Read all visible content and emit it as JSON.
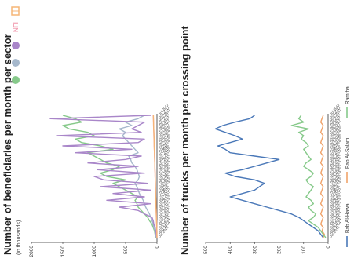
{
  "chart_data": [
    {
      "type": "line",
      "title": "Number of beneficiaries per month per sector",
      "subtitle": "(in thousands)",
      "ylim": [
        0,
        2000
      ],
      "yticks": [
        0,
        500,
        1000,
        1500,
        2000
      ],
      "grid": false,
      "legend_position": "top",
      "x": [
        "Jul 2014",
        "Aug 2014",
        "Sep 2014",
        "Oct 2014",
        "Nov 2014",
        "Dec 2014",
        "Jan 2015",
        "Feb 2015",
        "Mar 2015",
        "Apr 2015",
        "May 2015",
        "Jun 2015",
        "Jul 2015",
        "Aug 2015",
        "Sep 2015",
        "Oct 2015",
        "Nov 2015",
        "Dec 2015",
        "Jan 2016",
        "Feb 2016",
        "Mar 2016",
        "Apr 2016",
        "May 2016",
        "Jun 2016",
        "Jul 2016",
        "Aug 2016",
        "Sep 2016",
        "Oct 2016",
        "Nov 2016",
        "Dec 2016",
        "Jan 2017",
        "Feb 2017",
        "Mar 2017",
        "Apr 2017",
        "May 2017",
        "Jun 2017",
        "Jul 2017"
      ],
      "series": [
        {
          "icon": "food-sector-icon",
          "color": "#86c98a",
          "values": [
            20,
            30,
            40,
            60,
            80,
            120,
            150,
            200,
            250,
            300,
            320,
            350,
            300,
            400,
            500,
            600,
            700,
            500,
            800,
            900,
            700,
            600,
            800,
            900,
            1000,
            1100,
            700,
            900,
            1200,
            1300,
            1000,
            1100,
            1400,
            1500,
            1200,
            1300,
            1500
          ]
        },
        {
          "icon": "health-sector-icon",
          "color": "#a6b8cc",
          "values": [
            10,
            20,
            30,
            50,
            60,
            80,
            100,
            120,
            150,
            180,
            200,
            220,
            250,
            280,
            300,
            320,
            350,
            300,
            280,
            300,
            320,
            350,
            400,
            420,
            450,
            300,
            350,
            400,
            450,
            500,
            550,
            500,
            600,
            400,
            500,
            300,
            200
          ]
        },
        {
          "icon": "wash-sector-icon",
          "color": "#a986c9",
          "values": [
            5,
            10,
            20,
            30,
            50,
            60,
            80,
            200,
            300,
            600,
            100,
            800,
            200,
            700,
            100,
            900,
            150,
            850,
            1000,
            200,
            950,
            300,
            1100,
            500,
            250,
            1300,
            400,
            1500,
            300,
            200,
            1600,
            250,
            400,
            300,
            200,
            1700,
            100
          ]
        },
        {
          "icon": "nfi-sector-icon",
          "color": "#f2a0b3",
          "values": [
            0,
            0,
            0,
            5,
            5,
            8,
            10,
            10,
            12,
            15,
            15,
            18,
            20,
            20,
            22,
            25,
            25,
            28,
            30,
            30,
            32,
            35,
            35,
            38,
            40,
            40,
            42,
            45,
            45,
            48,
            50,
            50,
            52,
            55,
            55,
            58,
            60
          ]
        },
        {
          "icon": "shelter-sector-icon",
          "color": "#f5b577",
          "values": [
            0,
            2,
            3,
            5,
            6,
            8,
            10,
            12,
            14,
            15,
            16,
            18,
            20,
            22,
            24,
            25,
            26,
            28,
            30,
            30,
            32,
            34,
            35,
            36,
            38,
            40,
            42,
            44,
            45,
            46,
            48,
            50,
            52,
            54,
            55,
            56,
            58
          ]
        }
      ]
    },
    {
      "type": "line",
      "title": "Number of trucks per month per crossing point",
      "ylim": [
        0,
        500
      ],
      "yticks": [
        0,
        100,
        200,
        300,
        400,
        500
      ],
      "grid": false,
      "legend_position": "bottom",
      "x": [
        "Jul 2014",
        "Aug 2014",
        "Sep 2014",
        "Oct 2014",
        "Nov 2014",
        "Dec 2014",
        "Jan 2015",
        "Feb 2015",
        "Mar 2015",
        "Apr 2015",
        "May 2015",
        "Jun 2015",
        "Jul 2015",
        "Aug 2015",
        "Sep 2015",
        "Oct 2015",
        "Nov 2015",
        "Dec 2015",
        "Jan 2016",
        "Feb 2016",
        "Mar 2016",
        "Apr 2016",
        "May 2016",
        "Jun 2016",
        "Jul 2016",
        "Aug 2016",
        "Sep 2016",
        "Oct 2016",
        "Nov 2016",
        "Dec 2016",
        "Jan 2017",
        "Feb 2017",
        "Mar 2017",
        "Apr 2017",
        "May 2017",
        "Jun 2017",
        "Jul 2017"
      ],
      "series": [
        {
          "name": "Bab Al-Hawa",
          "color": "#4a78b8",
          "values": [
            20,
            30,
            40,
            60,
            80,
            100,
            120,
            150,
            200,
            250,
            300,
            350,
            400,
            350,
            300,
            280,
            260,
            300,
            380,
            420,
            350,
            300,
            250,
            200,
            300,
            400,
            420,
            450,
            400,
            350,
            380,
            420,
            460,
            430,
            380,
            320,
            300
          ]
        },
        {
          "name": "Bab Al-Salam",
          "color": "#f0a36a",
          "values": [
            20,
            15,
            25,
            20,
            30,
            25,
            20,
            30,
            25,
            20,
            30,
            25,
            20,
            30,
            25,
            20,
            30,
            25,
            20,
            30,
            25,
            20,
            30,
            25,
            20,
            30,
            25,
            20,
            30,
            25,
            20,
            30,
            25,
            20,
            30,
            25,
            20
          ]
        },
        {
          "name": "Ramtha",
          "color": "#86c98a",
          "values": [
            10,
            20,
            30,
            40,
            60,
            80,
            60,
            50,
            70,
            80,
            60,
            70,
            90,
            80,
            70,
            60,
            80,
            90,
            70,
            60,
            80,
            100,
            90,
            70,
            80,
            90,
            100,
            80,
            90,
            110,
            100,
            120,
            80,
            150,
            100,
            120,
            110
          ]
        }
      ]
    }
  ]
}
